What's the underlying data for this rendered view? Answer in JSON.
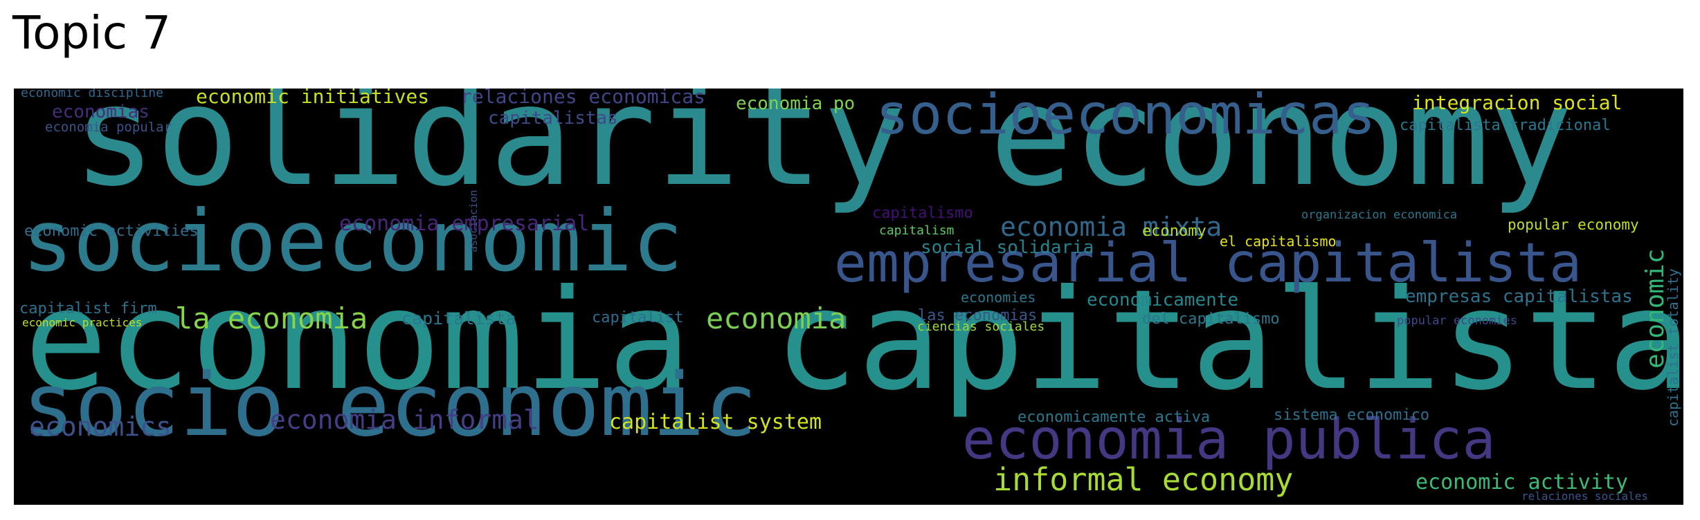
{
  "title": "Topic 7",
  "words": [
    {
      "text": "solidarity economy",
      "color": "#2a8a8e"
    },
    {
      "text": "economia capitalista",
      "color": "#26908c"
    },
    {
      "text": "socioeconomic",
      "color": "#2c7c8e"
    },
    {
      "text": "socio economic",
      "color": "#2e6f8e"
    },
    {
      "text": "socioeconomicas",
      "color": "#35608d"
    },
    {
      "text": "empresarial capitalista",
      "color": "#39568c"
    },
    {
      "text": "economia publica",
      "color": "#453781"
    },
    {
      "text": "informal economy",
      "color": "#a8db34"
    },
    {
      "text": "economia",
      "color": "#7ad151"
    },
    {
      "text": "la economia",
      "color": "#86d549"
    },
    {
      "text": "economics",
      "color": "#3b528b"
    },
    {
      "text": "economia informal",
      "color": "#433e85"
    },
    {
      "text": "capitalist system",
      "color": "#d2e21b"
    },
    {
      "text": "economia mixta",
      "color": "#31688e"
    },
    {
      "text": "economia empresarial",
      "color": "#482677"
    },
    {
      "text": "social solidaria",
      "color": "#26828e"
    },
    {
      "text": "economic activity",
      "color": "#3cbb75"
    },
    {
      "text": "empresas capitalistas",
      "color": "#2c738e"
    },
    {
      "text": "economicamente",
      "color": "#24878e"
    },
    {
      "text": "economic initiatives",
      "color": "#c8e020"
    },
    {
      "text": "relaciones economicas",
      "color": "#404688"
    },
    {
      "text": "capitalistas",
      "color": "#3e4a89"
    },
    {
      "text": "economia po",
      "color": "#7fd34e"
    },
    {
      "text": "integracion social",
      "color": "#dde318"
    },
    {
      "text": "economic",
      "color": "#35b779"
    },
    {
      "text": "economias",
      "color": "#472d7b"
    },
    {
      "text": "economia popular",
      "color": "#3b528b"
    },
    {
      "text": "capitalista tradicional",
      "color": "#2a788e"
    },
    {
      "text": "economic discipline",
      "color": "#31688e"
    },
    {
      "text": "asociacion",
      "color": "#3b528b"
    },
    {
      "text": "capitalist totality",
      "color": "#2c728e"
    },
    {
      "text": "economic activities",
      "color": "#2e6e8e"
    },
    {
      "text": "capitalismo",
      "color": "#440f76"
    },
    {
      "text": "capitalism",
      "color": "#5ec962"
    },
    {
      "text": "organizacion economica",
      "color": "#2a788e"
    },
    {
      "text": "economy",
      "color": "#b5de2b"
    },
    {
      "text": "popular economy",
      "color": "#c0df25"
    },
    {
      "text": "el capitalismo",
      "color": "#e5e419"
    },
    {
      "text": "capitalist firm",
      "color": "#2c728e"
    },
    {
      "text": "economic practices",
      "color": "#c2df23"
    },
    {
      "text": "capitalista",
      "color": "#2a788e"
    },
    {
      "text": "capitalist",
      "color": "#2f6c8e"
    },
    {
      "text": "economies",
      "color": "#2a788e"
    },
    {
      "text": "las economias",
      "color": "#38588c"
    },
    {
      "text": "ciencias sociales",
      "color": "#a0da39"
    },
    {
      "text": "del capitalismo",
      "color": "#2a778e"
    },
    {
      "text": "popular economies",
      "color": "#3e4989"
    },
    {
      "text": "economicamente activa",
      "color": "#2a788e"
    },
    {
      "text": "sistema economico",
      "color": "#2e6f8e"
    },
    {
      "text": "relaciones sociales",
      "color": "#39568c"
    }
  ]
}
